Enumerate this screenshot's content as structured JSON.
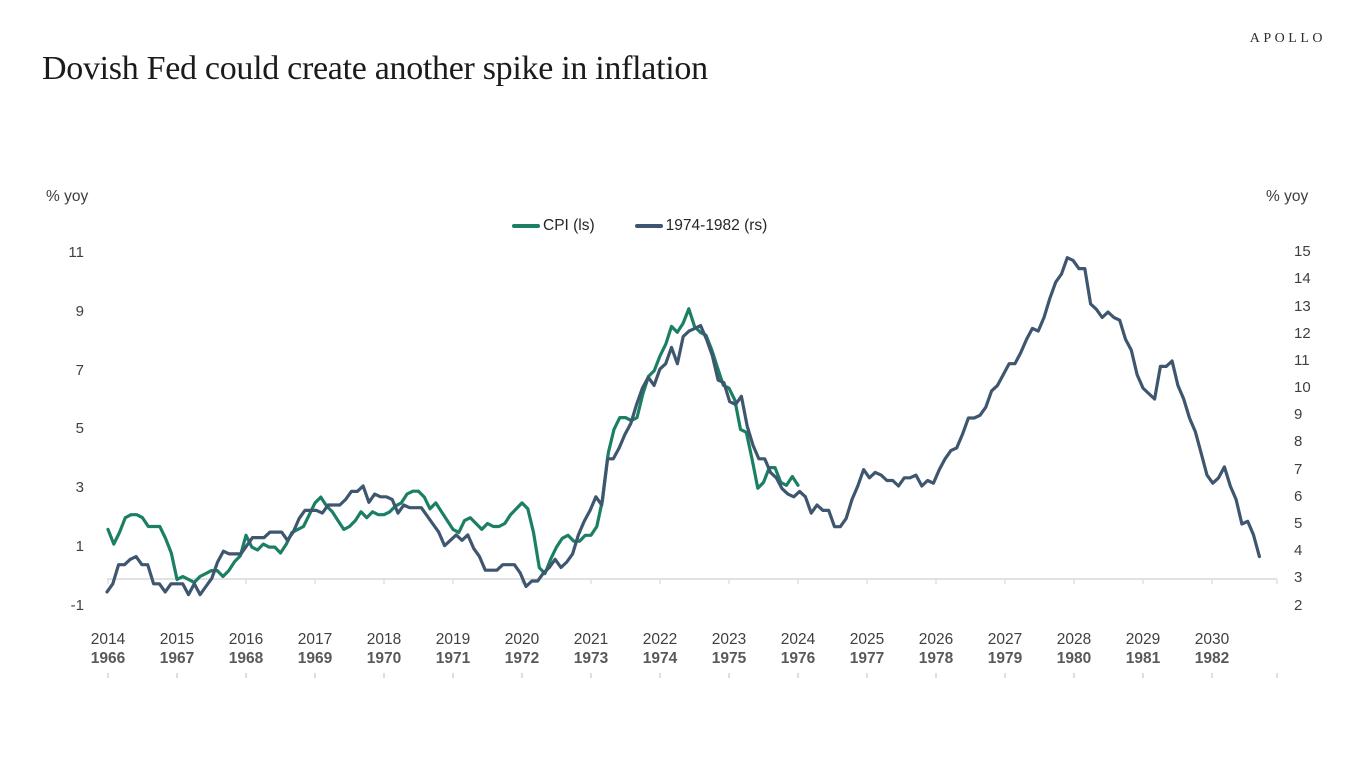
{
  "brand": {
    "logo": "APOLLO"
  },
  "title": "Dovish Fed could create another spike in inflation",
  "chart_data": {
    "type": "line",
    "title": "Dovish Fed could create another spike in inflation",
    "legend_position": "top-center",
    "grid": "off",
    "baseline_color": "#d9d9d9",
    "left_axis": {
      "label": "% yoy",
      "range": [
        -1,
        11
      ],
      "ticks": [
        11,
        9,
        7,
        5,
        3,
        1,
        -1
      ]
    },
    "right_axis": {
      "label": "% yoy",
      "range": [
        2,
        15
      ],
      "ticks": [
        15,
        14,
        13,
        12,
        11,
        10,
        9,
        8,
        7,
        6,
        5,
        4,
        3,
        2
      ]
    },
    "x_axis": {
      "top_row_years": [
        "2014",
        "2015",
        "2016",
        "2017",
        "2018",
        "2019",
        "2020",
        "2021",
        "2022",
        "2023",
        "2024",
        "2025",
        "2026",
        "2027",
        "2028",
        "2029",
        "2030"
      ],
      "bottom_row_years": [
        "1966",
        "1967",
        "1968",
        "1969",
        "1970",
        "1971",
        "1972",
        "1973",
        "1974",
        "1975",
        "1976",
        "1977",
        "1978",
        "1979",
        "1980",
        "1981",
        "1982"
      ]
    },
    "series": [
      {
        "name": "CPI (ls)",
        "axis": "left",
        "color": "#1b7f63",
        "start": "2014-01",
        "frequency": "monthly",
        "values": [
          1.6,
          1.1,
          1.5,
          2.0,
          2.1,
          2.1,
          2.0,
          1.7,
          1.7,
          1.7,
          1.3,
          0.8,
          -0.1,
          0.0,
          -0.1,
          -0.2,
          0.0,
          0.1,
          0.2,
          0.2,
          0.0,
          0.2,
          0.5,
          0.7,
          1.4,
          1.0,
          0.9,
          1.1,
          1.0,
          1.0,
          0.8,
          1.1,
          1.5,
          1.6,
          1.7,
          2.1,
          2.5,
          2.7,
          2.4,
          2.2,
          1.9,
          1.6,
          1.7,
          1.9,
          2.2,
          2.0,
          2.2,
          2.1,
          2.1,
          2.2,
          2.4,
          2.5,
          2.8,
          2.9,
          2.9,
          2.7,
          2.3,
          2.5,
          2.2,
          1.9,
          1.6,
          1.5,
          1.9,
          2.0,
          1.8,
          1.6,
          1.8,
          1.7,
          1.7,
          1.8,
          2.1,
          2.3,
          2.5,
          2.3,
          1.5,
          0.3,
          0.1,
          0.6,
          1.0,
          1.3,
          1.4,
          1.2,
          1.2,
          1.4,
          1.4,
          1.7,
          2.6,
          4.2,
          5.0,
          5.4,
          5.4,
          5.3,
          5.4,
          6.2,
          6.8,
          7.0,
          7.5,
          7.9,
          8.5,
          8.3,
          8.6,
          9.1,
          8.5,
          8.3,
          8.2,
          7.7,
          7.1,
          6.5,
          6.4,
          6.0,
          5.0,
          4.9,
          4.0,
          3.0,
          3.2,
          3.7,
          3.7,
          3.2,
          3.1,
          3.4,
          3.1
        ]
      },
      {
        "name": "1974-1982 (rs)",
        "axis": "right",
        "color": "#3e566f",
        "start": "1966-06",
        "frequency": "monthly",
        "values": [
          2.5,
          2.8,
          3.5,
          3.5,
          3.7,
          3.8,
          3.5,
          3.5,
          2.8,
          2.8,
          2.5,
          2.8,
          2.8,
          2.8,
          2.4,
          2.8,
          2.4,
          2.7,
          3.0,
          3.6,
          4.0,
          3.9,
          3.9,
          3.9,
          4.2,
          4.5,
          4.5,
          4.5,
          4.7,
          4.7,
          4.7,
          4.4,
          4.7,
          5.2,
          5.5,
          5.5,
          5.5,
          5.4,
          5.7,
          5.7,
          5.7,
          5.9,
          6.2,
          6.2,
          6.4,
          5.8,
          6.1,
          6.0,
          6.0,
          5.9,
          5.4,
          5.7,
          5.6,
          5.6,
          5.6,
          5.3,
          5.0,
          4.7,
          4.2,
          4.4,
          4.6,
          4.4,
          4.6,
          4.1,
          3.8,
          3.3,
          3.3,
          3.3,
          3.5,
          3.5,
          3.5,
          3.2,
          2.7,
          2.9,
          2.9,
          3.2,
          3.4,
          3.7,
          3.4,
          3.6,
          3.9,
          4.6,
          5.1,
          5.5,
          6.0,
          5.7,
          7.4,
          7.4,
          7.8,
          8.3,
          8.7,
          9.4,
          10.0,
          10.4,
          10.1,
          10.7,
          10.9,
          11.5,
          10.9,
          11.9,
          12.1,
          12.2,
          12.3,
          11.8,
          11.2,
          10.3,
          10.2,
          9.5,
          9.4,
          9.7,
          8.6,
          7.9,
          7.4,
          7.4,
          6.9,
          6.7,
          6.3,
          6.1,
          6.0,
          6.2,
          6.0,
          5.4,
          5.7,
          5.5,
          5.5,
          4.9,
          4.9,
          5.2,
          5.9,
          6.4,
          7.0,
          6.7,
          6.9,
          6.8,
          6.6,
          6.6,
          6.4,
          6.7,
          6.7,
          6.8,
          6.4,
          6.6,
          6.5,
          7.0,
          7.4,
          7.7,
          7.8,
          8.3,
          8.9,
          8.9,
          9.0,
          9.3,
          9.9,
          10.1,
          10.5,
          10.9,
          10.9,
          11.3,
          11.8,
          12.2,
          12.1,
          12.6,
          13.3,
          13.9,
          14.2,
          14.8,
          14.7,
          14.4,
          14.4,
          13.1,
          12.9,
          12.6,
          12.8,
          12.6,
          12.5,
          11.8,
          11.4,
          10.5,
          10.0,
          9.8,
          9.6,
          10.8,
          10.8,
          11.0,
          10.1,
          9.6,
          8.9,
          8.4,
          7.6,
          6.8,
          6.5,
          6.7,
          7.1,
          6.4,
          5.9,
          5.0,
          5.1,
          4.6,
          3.8
        ]
      }
    ]
  }
}
